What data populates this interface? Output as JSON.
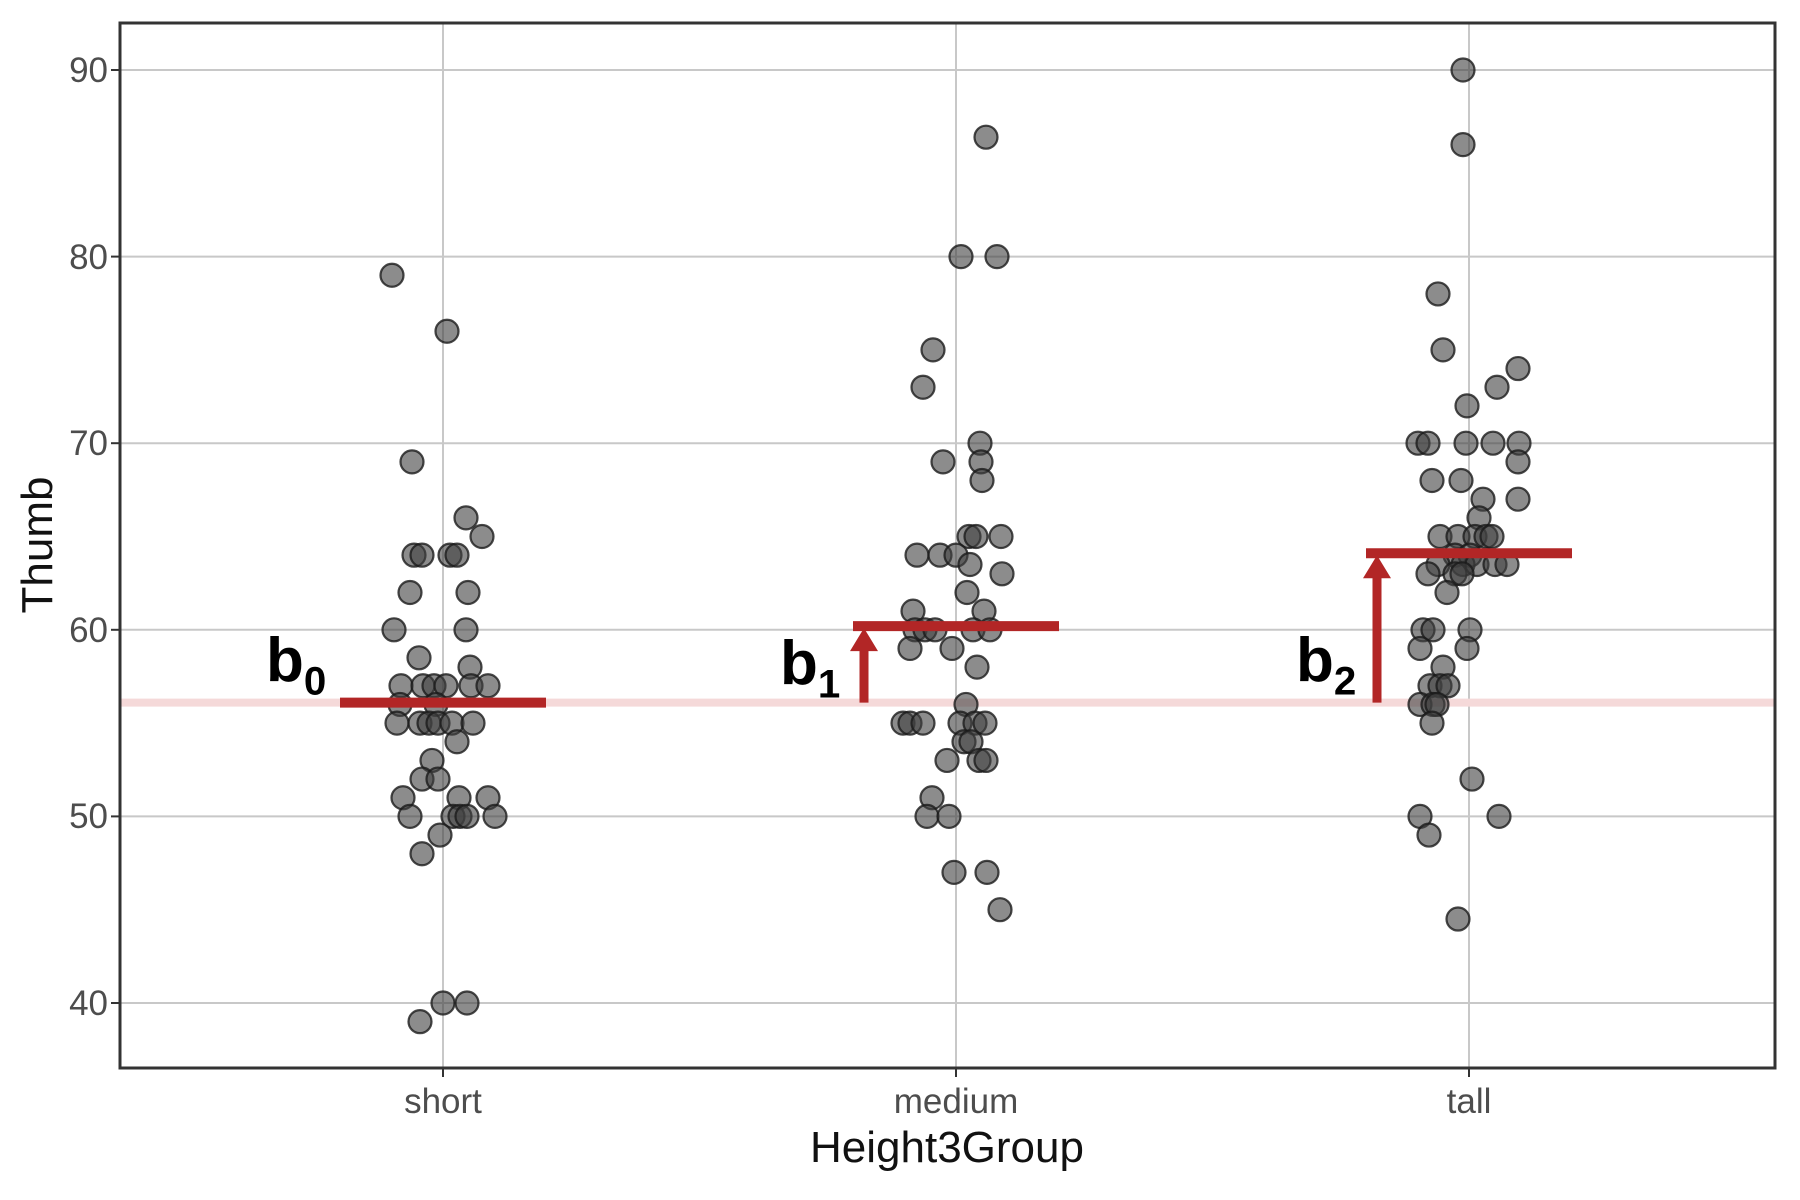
{
  "chart_data": {
    "type": "scatter",
    "subtype": "jitter-strip-plot-with-group-means",
    "title": "",
    "xlabel": "Height3Group",
    "ylabel": "Thumb",
    "categories": [
      "short",
      "medium",
      "tall"
    ],
    "yticks": [
      40,
      50,
      60,
      70,
      80,
      90
    ],
    "ylim": [
      36.5,
      92.5
    ],
    "grid": true,
    "legend": "none",
    "baseline_value": 56.1,
    "group_means": [
      {
        "category": "short",
        "mean": 56.1
      },
      {
        "category": "medium",
        "mean": 60.2
      },
      {
        "category": "tall",
        "mean": 64.1
      }
    ],
    "annotations": [
      {
        "base": "b",
        "sub": "0",
        "attached_to": "short"
      },
      {
        "base": "b",
        "sub": "1",
        "attached_to": "medium"
      },
      {
        "base": "b",
        "sub": "2",
        "attached_to": "tall"
      }
    ],
    "arrows": [
      {
        "category": "medium",
        "from": 56.1,
        "to": 60.2
      },
      {
        "category": "tall",
        "from": 56.1,
        "to": 64.1
      }
    ],
    "points": {
      "short": [
        [
          392,
          79
        ],
        [
          447,
          76
        ],
        [
          412,
          69
        ],
        [
          466,
          66
        ],
        [
          482,
          65
        ],
        [
          414,
          64
        ],
        [
          422,
          64
        ],
        [
          450,
          64
        ],
        [
          457,
          64
        ],
        [
          410,
          62
        ],
        [
          468,
          62
        ],
        [
          394,
          60
        ],
        [
          466,
          60
        ],
        [
          419,
          58.5
        ],
        [
          470,
          58
        ],
        [
          401,
          57
        ],
        [
          423,
          57
        ],
        [
          434,
          57
        ],
        [
          446,
          57
        ],
        [
          471,
          57
        ],
        [
          488,
          57
        ],
        [
          400,
          56
        ],
        [
          436,
          56
        ],
        [
          397,
          55
        ],
        [
          420,
          55
        ],
        [
          429,
          55
        ],
        [
          438,
          55
        ],
        [
          452,
          55
        ],
        [
          473,
          55
        ],
        [
          457,
          54
        ],
        [
          432,
          53
        ],
        [
          422,
          52
        ],
        [
          438,
          52
        ],
        [
          403,
          51
        ],
        [
          459,
          51
        ],
        [
          488,
          51
        ],
        [
          410,
          50
        ],
        [
          453,
          50
        ],
        [
          460,
          50
        ],
        [
          467,
          50
        ],
        [
          495,
          50
        ],
        [
          440,
          49
        ],
        [
          422,
          48
        ],
        [
          443,
          40
        ],
        [
          467,
          40
        ],
        [
          420,
          39
        ]
      ],
      "medium": [
        [
          986,
          86.4
        ],
        [
          961,
          80
        ],
        [
          997,
          80
        ],
        [
          933,
          75
        ],
        [
          923,
          73
        ],
        [
          980,
          70
        ],
        [
          943,
          69
        ],
        [
          981,
          69
        ],
        [
          982,
          68
        ],
        [
          969,
          65
        ],
        [
          976,
          65
        ],
        [
          1001,
          65
        ],
        [
          917,
          64
        ],
        [
          940,
          64
        ],
        [
          956,
          64
        ],
        [
          970,
          63.5
        ],
        [
          1002,
          63
        ],
        [
          967,
          62
        ],
        [
          913,
          61
        ],
        [
          984,
          61
        ],
        [
          915,
          60
        ],
        [
          925,
          60
        ],
        [
          935,
          60
        ],
        [
          973,
          60
        ],
        [
          990,
          60
        ],
        [
          910,
          59
        ],
        [
          952,
          59
        ],
        [
          977,
          58
        ],
        [
          966,
          56
        ],
        [
          903,
          55
        ],
        [
          910,
          55
        ],
        [
          923,
          55
        ],
        [
          960,
          55
        ],
        [
          975,
          55
        ],
        [
          985,
          55
        ],
        [
          964,
          54
        ],
        [
          971,
          54
        ],
        [
          947,
          53
        ],
        [
          979,
          53
        ],
        [
          986,
          53
        ],
        [
          932,
          51
        ],
        [
          927,
          50
        ],
        [
          949,
          50
        ],
        [
          954,
          47
        ],
        [
          987,
          47
        ],
        [
          1000,
          45
        ]
      ],
      "tall": [
        [
          1463,
          90
        ],
        [
          1463,
          86
        ],
        [
          1438,
          78
        ],
        [
          1443,
          75
        ],
        [
          1518,
          74
        ],
        [
          1497,
          73
        ],
        [
          1467,
          72
        ],
        [
          1418,
          70
        ],
        [
          1428,
          70
        ],
        [
          1466,
          70
        ],
        [
          1493,
          70
        ],
        [
          1519,
          70
        ],
        [
          1518,
          69
        ],
        [
          1432,
          68
        ],
        [
          1461,
          68
        ],
        [
          1483,
          67
        ],
        [
          1518,
          67
        ],
        [
          1479,
          66
        ],
        [
          1440,
          65
        ],
        [
          1458,
          65
        ],
        [
          1475,
          65
        ],
        [
          1486,
          65
        ],
        [
          1492,
          65
        ],
        [
          1455,
          64
        ],
        [
          1470,
          64
        ],
        [
          1438,
          63.5
        ],
        [
          1463,
          63.5
        ],
        [
          1477,
          63.5
        ],
        [
          1495,
          63.5
        ],
        [
          1507,
          63.5
        ],
        [
          1428,
          63
        ],
        [
          1455,
          63
        ],
        [
          1462,
          63
        ],
        [
          1447,
          62
        ],
        [
          1423,
          60
        ],
        [
          1433,
          60
        ],
        [
          1470,
          60
        ],
        [
          1420,
          59
        ],
        [
          1467,
          59
        ],
        [
          1443,
          58
        ],
        [
          1430,
          57
        ],
        [
          1440,
          57
        ],
        [
          1448,
          57
        ],
        [
          1420,
          56
        ],
        [
          1433,
          56
        ],
        [
          1437,
          56
        ],
        [
          1432,
          55
        ],
        [
          1472,
          52
        ],
        [
          1420,
          50
        ],
        [
          1499,
          50
        ],
        [
          1429,
          49
        ],
        [
          1458,
          44.5
        ]
      ]
    },
    "colors": {
      "mean_line": "#B22626",
      "arrow": "#B22626",
      "baseline": "#F5D9D9",
      "point_fill": "#404040",
      "point_stroke": "#1A1A1A",
      "grid": "#C8C8C8",
      "panel_border": "#333333",
      "tick_label": "#4D4D4D",
      "axis_title": "#111111"
    }
  }
}
